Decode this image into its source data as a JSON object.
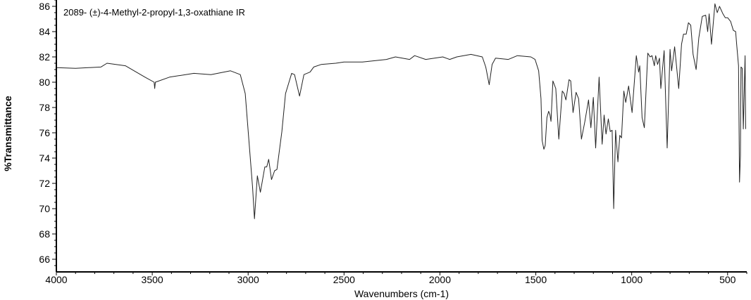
{
  "chart_data": {
    "type": "line",
    "title": "2089- (±)-4-Methyl-2-propyl-1,3-oxathiane IR",
    "xlabel": "Wavenumbers (cm-1)",
    "ylabel": "%Transmittance",
    "xlim": [
      4000,
      400
    ],
    "ylim": [
      65,
      86.5
    ],
    "x_reversed": true,
    "grid": false,
    "line_color": "#222222",
    "x_ticks": [
      4000,
      3500,
      3000,
      2500,
      2000,
      1500,
      1000,
      500
    ],
    "y_ticks": [
      66,
      68,
      70,
      72,
      74,
      76,
      78,
      80,
      82,
      84,
      86
    ],
    "series": [
      {
        "points": [
          [
            4000,
            81.15
          ],
          [
            3900,
            81.1
          ],
          [
            3768,
            81.2
          ],
          [
            3736,
            81.5
          ],
          [
            3640,
            81.3
          ],
          [
            3538,
            80.4
          ],
          [
            3490,
            80.0
          ],
          [
            3487,
            79.5
          ],
          [
            3484,
            80.0
          ],
          [
            3410,
            80.4
          ],
          [
            3283,
            80.7
          ],
          [
            3194,
            80.6
          ],
          [
            3092,
            80.9
          ],
          [
            3041,
            80.6
          ],
          [
            3015,
            79.1
          ],
          [
            2996,
            75.4
          ],
          [
            2977,
            71.7
          ],
          [
            2967,
            69.2
          ],
          [
            2952,
            72.6
          ],
          [
            2936,
            71.3
          ],
          [
            2913,
            73.3
          ],
          [
            2903,
            73.3
          ],
          [
            2893,
            73.9
          ],
          [
            2878,
            72.3
          ],
          [
            2862,
            73.0
          ],
          [
            2850,
            73.1
          ],
          [
            2824,
            76.1
          ],
          [
            2805,
            79.1
          ],
          [
            2773,
            80.7
          ],
          [
            2758,
            80.6
          ],
          [
            2732,
            78.9
          ],
          [
            2709,
            80.6
          ],
          [
            2677,
            80.8
          ],
          [
            2658,
            81.2
          ],
          [
            2620,
            81.4
          ],
          [
            2543,
            81.5
          ],
          [
            2500,
            81.6
          ],
          [
            2404,
            81.6
          ],
          [
            2279,
            81.8
          ],
          [
            2232,
            82.0
          ],
          [
            2158,
            81.8
          ],
          [
            2132,
            82.1
          ],
          [
            2074,
            81.8
          ],
          [
            1985,
            82.0
          ],
          [
            1949,
            81.8
          ],
          [
            1912,
            82.0
          ],
          [
            1838,
            82.2
          ],
          [
            1779,
            82.0
          ],
          [
            1761,
            81.2
          ],
          [
            1743,
            79.8
          ],
          [
            1728,
            81.4
          ],
          [
            1710,
            81.9
          ],
          [
            1643,
            81.8
          ],
          [
            1596,
            82.1
          ],
          [
            1526,
            82.0
          ],
          [
            1504,
            81.8
          ],
          [
            1485,
            80.9
          ],
          [
            1473,
            78.7
          ],
          [
            1467,
            75.4
          ],
          [
            1458,
            74.7
          ],
          [
            1451,
            75.0
          ],
          [
            1442,
            77.2
          ],
          [
            1433,
            77.7
          ],
          [
            1426,
            77.4
          ],
          [
            1421,
            76.9
          ],
          [
            1411,
            80.1
          ],
          [
            1396,
            79.5
          ],
          [
            1380,
            75.5
          ],
          [
            1362,
            79.3
          ],
          [
            1352,
            79.1
          ],
          [
            1343,
            78.6
          ],
          [
            1327,
            80.2
          ],
          [
            1318,
            80.1
          ],
          [
            1306,
            77.6
          ],
          [
            1290,
            79.2
          ],
          [
            1277,
            78.7
          ],
          [
            1262,
            75.5
          ],
          [
            1244,
            76.9
          ],
          [
            1225,
            78.6
          ],
          [
            1213,
            76.4
          ],
          [
            1200,
            78.8
          ],
          [
            1188,
            74.8
          ],
          [
            1170,
            80.4
          ],
          [
            1154,
            75.1
          ],
          [
            1144,
            77.4
          ],
          [
            1134,
            75.9
          ],
          [
            1122,
            77.1
          ],
          [
            1112,
            76.1
          ],
          [
            1102,
            76.2
          ],
          [
            1094,
            70.0
          ],
          [
            1084,
            76.2
          ],
          [
            1072,
            73.7
          ],
          [
            1062,
            75.8
          ],
          [
            1053,
            75.6
          ],
          [
            1041,
            79.3
          ],
          [
            1031,
            78.4
          ],
          [
            1016,
            79.7
          ],
          [
            998,
            77.6
          ],
          [
            976,
            82.1
          ],
          [
            964,
            80.8
          ],
          [
            958,
            81.3
          ],
          [
            946,
            77.2
          ],
          [
            934,
            76.4
          ],
          [
            916,
            82.3
          ],
          [
            904,
            82.0
          ],
          [
            894,
            82.1
          ],
          [
            882,
            81.3
          ],
          [
            875,
            82.1
          ],
          [
            865,
            81.4
          ],
          [
            855,
            81.9
          ],
          [
            848,
            79.5
          ],
          [
            831,
            82.5
          ],
          [
            815,
            74.8
          ],
          [
            800,
            82.6
          ],
          [
            792,
            80.9
          ],
          [
            776,
            82.8
          ],
          [
            755,
            79.5
          ],
          [
            740,
            83.0
          ],
          [
            730,
            83.8
          ],
          [
            716,
            83.8
          ],
          [
            704,
            84.7
          ],
          [
            692,
            84.5
          ],
          [
            680,
            82.2
          ],
          [
            664,
            81.0
          ],
          [
            650,
            83.5
          ],
          [
            632,
            85.2
          ],
          [
            614,
            85.3
          ],
          [
            604,
            84.0
          ],
          [
            596,
            85.4
          ],
          [
            584,
            83.0
          ],
          [
            566,
            86.2
          ],
          [
            554,
            85.5
          ],
          [
            542,
            86.0
          ],
          [
            524,
            85.4
          ],
          [
            512,
            85.1
          ],
          [
            500,
            85.1
          ],
          [
            484,
            84.8
          ],
          [
            470,
            84.1
          ],
          [
            458,
            84.0
          ],
          [
            452,
            82.9
          ],
          [
            443,
            81.3
          ],
          [
            438,
            72.1
          ],
          [
            433,
            74.2
          ],
          [
            430,
            81.2
          ],
          [
            424,
            81.1
          ],
          [
            418,
            76.3
          ],
          [
            409,
            82.1
          ],
          [
            406,
            76.3
          ]
        ]
      }
    ]
  }
}
